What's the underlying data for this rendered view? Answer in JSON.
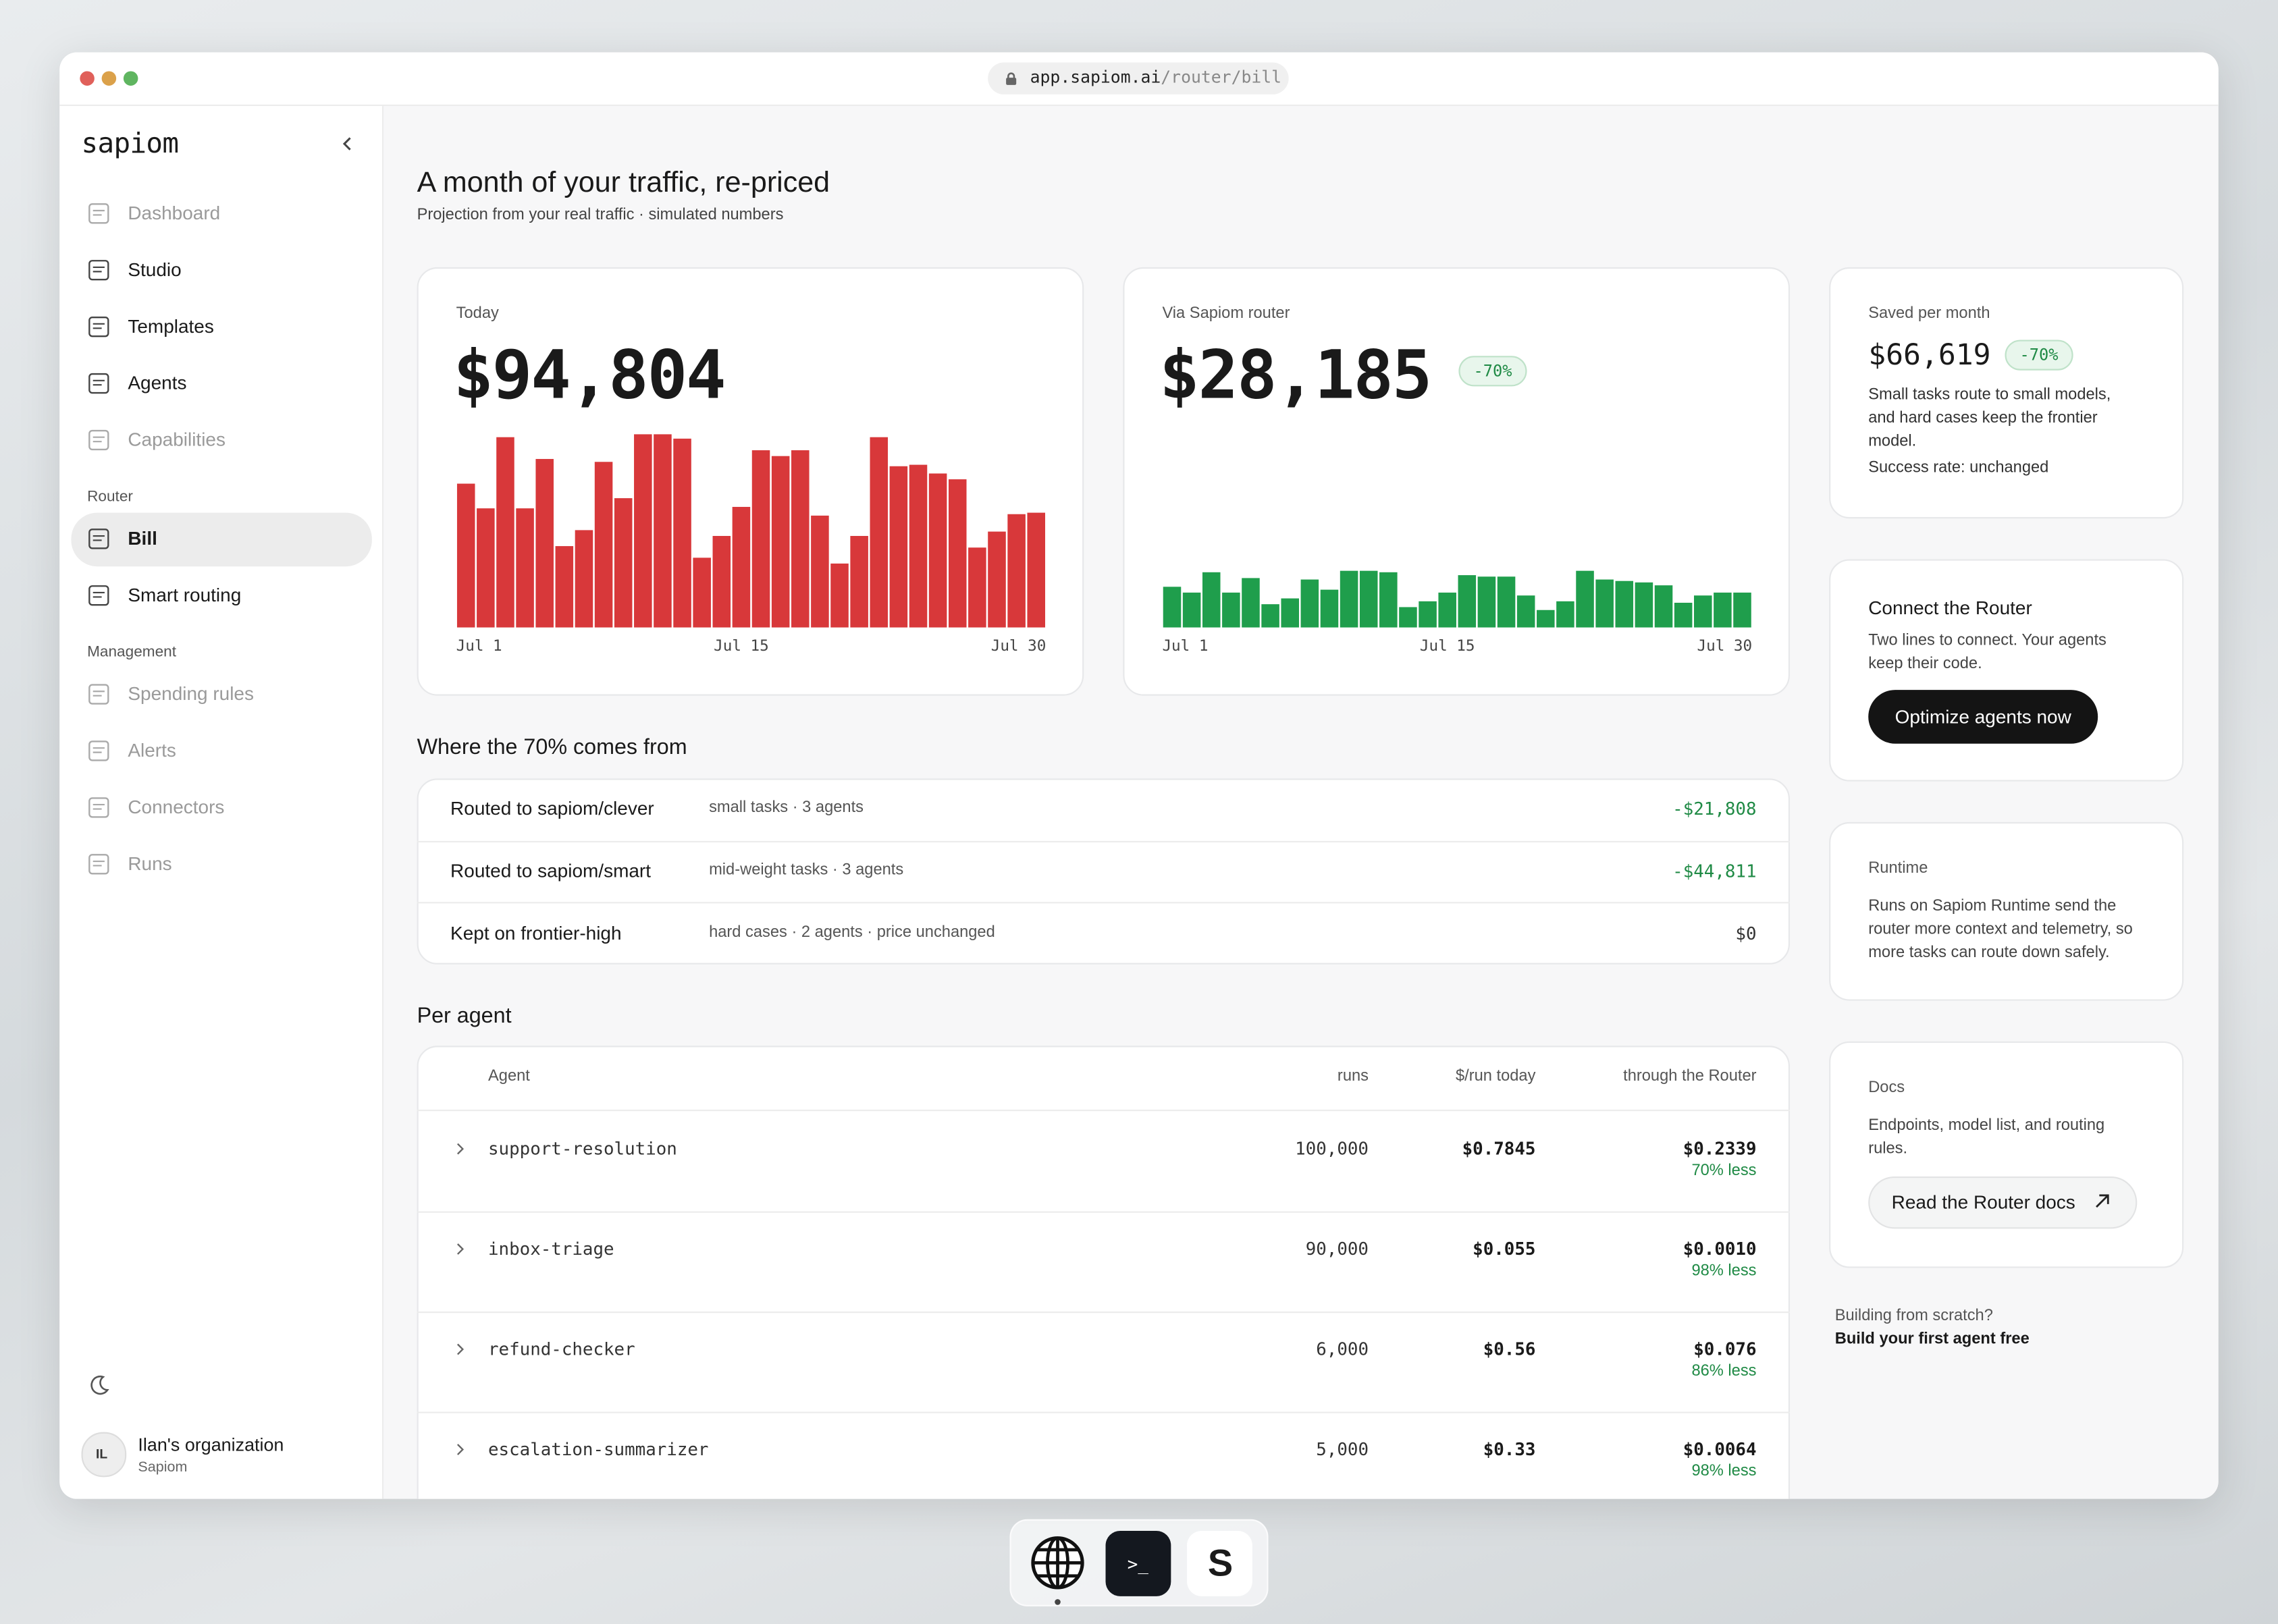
{
  "browser": {
    "url_host": "app.sapiom.ai",
    "url_path": "/router/bill"
  },
  "sidebar": {
    "logo": "sapiom",
    "main_nav": [
      "Dashboard",
      "Studio",
      "Templates",
      "Agents",
      "Capabilities"
    ],
    "router_section": {
      "label": "Router",
      "items": [
        "Bill",
        "Smart routing"
      ]
    },
    "management_section": {
      "label": "Management",
      "items": [
        "Spending rules",
        "Alerts",
        "Connectors",
        "Runs"
      ]
    },
    "org": {
      "initials": "IL",
      "name": "Ilan's organization",
      "sub": "Sapiom"
    }
  },
  "header": {
    "title": "A month of your traffic, re-priced",
    "subtitle": "Projection from your real traffic · simulated numbers"
  },
  "cards": [
    {
      "label": "Today",
      "amount": "$94,804"
    },
    {
      "label": "Via Sapiom router",
      "amount": "$28,185",
      "badge": "-70%"
    }
  ],
  "chart_data": [
    {
      "type": "bar",
      "color": "#d8383a",
      "ylim": [
        0,
        135
      ],
      "categories": [
        "Jul 1",
        null,
        null,
        null,
        null,
        null,
        null,
        null,
        null,
        null,
        null,
        null,
        null,
        null,
        "Jul 15",
        null,
        null,
        null,
        null,
        null,
        null,
        null,
        null,
        null,
        null,
        null,
        null,
        null,
        null,
        "Jul 30"
      ],
      "values": [
        99,
        82,
        131,
        82,
        116,
        56,
        67,
        114,
        89,
        133,
        133,
        130,
        48,
        63,
        83,
        122,
        118,
        122,
        77,
        44,
        63,
        131,
        111,
        112,
        106,
        102,
        55,
        66,
        78,
        79
      ]
    },
    {
      "type": "bar",
      "color": "#1f9e4c",
      "ylim": [
        0,
        135
      ],
      "categories": [
        "Jul 1",
        null,
        null,
        null,
        null,
        null,
        null,
        null,
        null,
        null,
        null,
        null,
        null,
        null,
        "Jul 15",
        null,
        null,
        null,
        null,
        null,
        null,
        null,
        null,
        null,
        null,
        null,
        null,
        null,
        null,
        "Jul 30"
      ],
      "values": [
        28,
        24,
        38,
        24,
        34,
        16,
        20,
        33,
        26,
        39,
        39,
        38,
        14,
        18,
        24,
        36,
        35,
        35,
        22,
        12,
        18,
        39,
        33,
        32,
        31,
        29,
        17,
        22,
        24,
        24
      ]
    }
  ],
  "savings": {
    "label": "Saved per month",
    "amount": "$66,619",
    "badge": "-70%",
    "text": "Small tasks route to small models, and hard cases keep the frontier model.",
    "success": "Success rate: unchanged"
  },
  "connect": {
    "title": "Connect the Router",
    "text": "Two lines to connect. Your agents keep their code.",
    "button": "Optimize agents now"
  },
  "runtime": {
    "title": "Runtime",
    "text": "Runs on Sapiom Runtime send the router more context and telemetry, so more tasks can route down safely."
  },
  "docs": {
    "title": "Docs",
    "text": "Endpoints, model list, and routing rules.",
    "button": "Read the Router docs"
  },
  "scratch": {
    "question": "Building from scratch?",
    "link": "Build your first agent free"
  },
  "breakdown": {
    "title": "Where the 70% comes from",
    "rows": [
      [
        "Routed to sapiom/clever",
        "small tasks · 3 agents",
        "-$21,808"
      ],
      [
        "Routed to sapiom/smart",
        "mid-weight tasks · 3 agents",
        "-$44,811"
      ],
      [
        "Kept on frontier-high",
        "hard cases · 2 agents · price unchanged",
        "$0"
      ]
    ]
  },
  "per_agent": {
    "title": "Per agent",
    "columns": [
      "Agent",
      "runs",
      "$/run today",
      "through the Router"
    ],
    "rows": [
      {
        "name": "support-resolution",
        "runs": "100,000",
        "per_run": "$0.7845",
        "router": "$0.2339",
        "change": "70% less"
      },
      {
        "name": "inbox-triage",
        "runs": "90,000",
        "per_run": "$0.055",
        "router": "$0.0010",
        "change": "98% less"
      },
      {
        "name": "refund-checker",
        "runs": "6,000",
        "per_run": "$0.56",
        "router": "$0.076",
        "change": "86% less"
      },
      {
        "name": "escalation-summarizer",
        "runs": "5,000",
        "per_run": "$0.33",
        "router": "$0.0064",
        "change": "98% less"
      }
    ]
  },
  "dock": {
    "terminal": ">_",
    "app": "S"
  }
}
